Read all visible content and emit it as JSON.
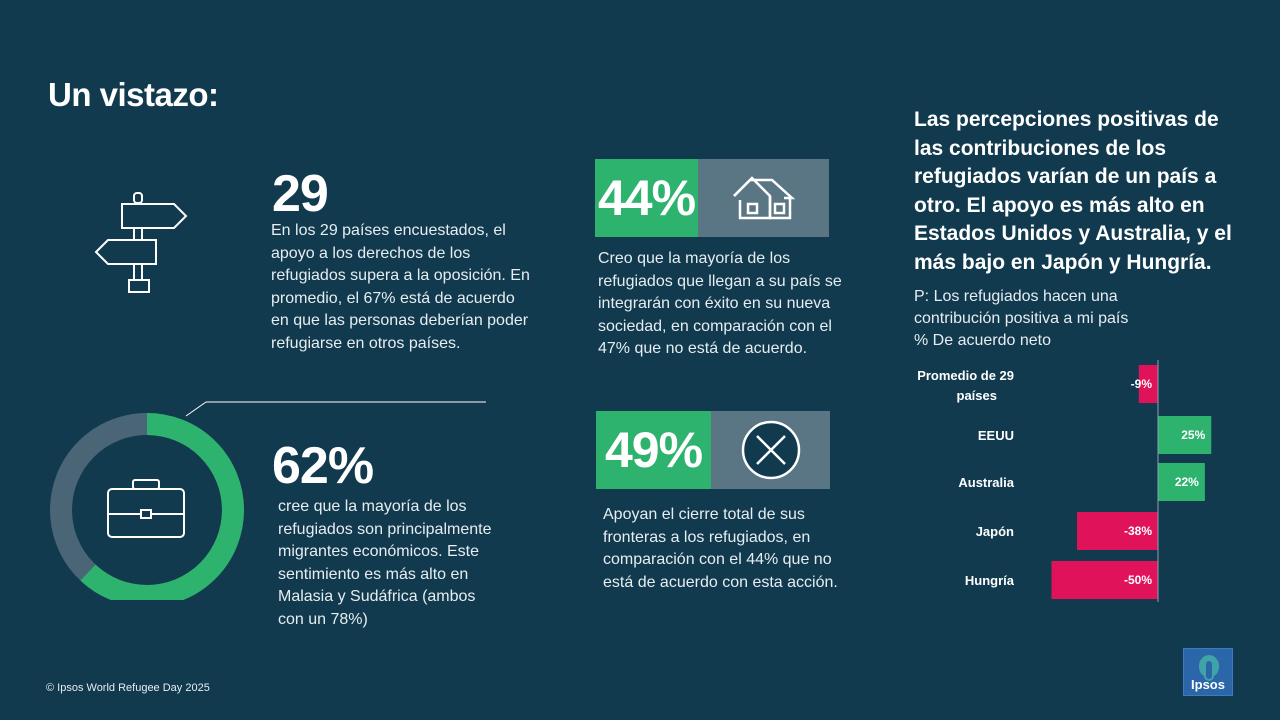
{
  "title": "Un vistazo:",
  "stat1": {
    "icon": "signpost-icon",
    "value": "29",
    "text": "En los 29 países encuestados, el apoyo a los derechos de los refugiados supera a la oposición. En promedio, el 67% está de acuerdo en que las personas deberían poder refugiarse en otros países."
  },
  "stat2": {
    "icon": "briefcase-icon",
    "value": "62%",
    "fraction": 0.62,
    "text": "cree que la mayoría de los refugiados son principalmente migrantes económicos. Este sentimiento es más alto en Malasia y Sudáfrica (ambos con un 78%)"
  },
  "stat3": {
    "icon": "house-icon",
    "value": "44%",
    "text": "Creo que la mayoría de los refugiados que llegan a su país se integrarán con éxito en su nueva sociedad, en comparación con el 47% que no está de acuerdo."
  },
  "stat4": {
    "icon": "x-circle-icon",
    "value": "49%",
    "text": "Apoyan el cierre total de sus fronteras a los refugiados, en comparación con el 44% que no está de acuerdo con esta acción."
  },
  "chart_title": "Las percepciones positivas de las contribuciones de los refugiados varían de un país a otro. El apoyo es más alto en Estados Unidos y Australia, y el más bajo en Japón y Hungría.",
  "chart_sub": {
    "line1": "P: Los refugiados hacen una",
    "line2": "contribución positiva a mi país",
    "line3": "% De acuerdo neto"
  },
  "chart_data": {
    "type": "bar",
    "orientation": "horizontal",
    "categories": [
      [
        "Promedio de 29",
        "países"
      ],
      [
        "EEUU"
      ],
      [
        "Australia"
      ],
      [
        "Japón"
      ],
      [
        "Hungría"
      ]
    ],
    "values": [
      -9,
      25,
      22,
      -38,
      -50
    ],
    "value_labels": [
      "-9%",
      "25%",
      "22%",
      "-38%",
      "-50%"
    ],
    "positive_color": "#2eb36f",
    "negative_color": "#e0135a"
  },
  "colors": {
    "background": "#123a4e",
    "green": "#2eb36f",
    "grey": "#5a7584",
    "pink": "#e0135a"
  },
  "footer": "© Ipsos World Refugee Day 2025",
  "logo": "Ipsos"
}
